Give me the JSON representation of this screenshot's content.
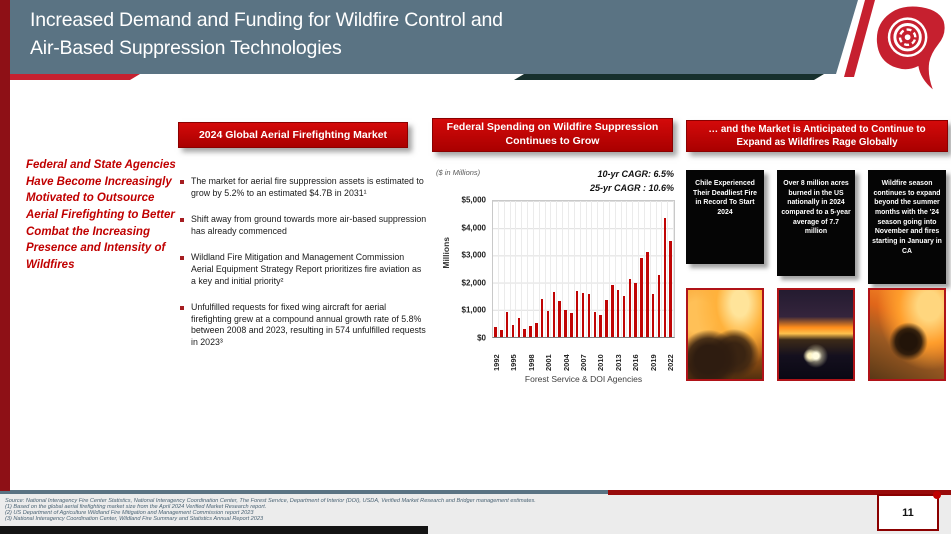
{
  "header": {
    "title_line1": "Increased Demand and Funding for Wildfire Control and",
    "title_line2": "Air-Based Suppression Technologies"
  },
  "left_callout": "Federal and State Agencies Have Become Increasingly Motivated to Outsource Aerial Firefighting to Better Combat the Increasing Presence and Intensity of Wildfires",
  "market_section": {
    "title": "2024 Global Aerial Firefighting Market",
    "bullets": [
      "The market for aerial fire suppression assets is estimated to grow by 5.2% to an estimated $4.7B in 2031¹",
      "Shift away from ground towards more air-based suppression has already commenced",
      "Wildland Fire Mitigation and Management Commission Aerial Equipment Strategy Report prioritizes fire aviation as a key and initial priority²",
      "Unfulfilled requests for fixed wing aircraft for aerial firefighting grew at a compound annual growth rate of 5.8% between 2008 and 2023, resulting in 574 unfulfilled requests in 2023³"
    ]
  },
  "chart_section": {
    "title": "Federal Spending on Wildfire Suppression Continues to Grow",
    "units_note": "($ in Millions)",
    "cagr_lines": [
      "10-yr CAGR: 6.5%",
      "25-yr CAGR : 10.6%"
    ],
    "y_axis_title": "Millions",
    "caption": "Forest Service & DOI Agencies"
  },
  "chart_data": {
    "type": "bar",
    "title": "Federal Spending on Wildfire Suppression Continues to Grow",
    "xlabel": "Forest Service & DOI Agencies",
    "ylabel": "Millions",
    "ylim": [
      0,
      5000
    ],
    "grid": true,
    "bar_color": "#c00505",
    "x": [
      1992,
      1993,
      1994,
      1995,
      1996,
      1997,
      1998,
      1999,
      2000,
      2001,
      2002,
      2003,
      2004,
      2005,
      2006,
      2007,
      2008,
      2009,
      2010,
      2011,
      2012,
      2013,
      2014,
      2015,
      2016,
      2017,
      2018,
      2019,
      2020,
      2021,
      2022
    ],
    "values": [
      379,
      240,
      918,
      430,
      701,
      286,
      416,
      515,
      1410,
      952,
      1661,
      1327,
      1007,
      876,
      1704,
      1620,
      1585,
      921,
      809,
      1375,
      1902,
      1741,
      1522,
      2130,
      1976,
      2918,
      3143,
      1590,
      2274,
      4389,
      3547
    ],
    "x_tick_labels": [
      "1992",
      "1995",
      "1998",
      "2001",
      "2004",
      "2007",
      "2010",
      "2013",
      "2016",
      "2019",
      "2022"
    ],
    "y_tick_labels": [
      "$5,000",
      "$4,000",
      "$3,000",
      "$2,000",
      "$1,000",
      "$0"
    ]
  },
  "expansion_section": {
    "title": "… and the Market is Anticipated to Continue to Expand as Wildfires Rage Globally",
    "callouts": [
      "Chile Experienced Their Deadliest Fire in Record To Start 2024",
      "Over 8 million acres burned in the US nationally in 2024 compared to a 5-year average of 7.7 million",
      "Wildfire season continues to expand beyond the summer months with the '24 season going into November and fires starting in January in CA"
    ]
  },
  "footer": {
    "sources": [
      "Source: National Interagency Fire Center Statistics, National Interagency Coordination Center, The Forest Service, Department of Interior (DOI), USDA, Verified Market Research and Bridger management estimates.",
      "(1) Based on the global aerial firefighting market size from the April 2024 Verified Market Research report.",
      "(2) US Department of Agriculture Wildland Fire Mitigation and Management Commission report 2023",
      "(3) National Interagency Coordination Center, Wildland Fire Summary and Statistics Annual Report 2023"
    ],
    "page_number": "11"
  }
}
